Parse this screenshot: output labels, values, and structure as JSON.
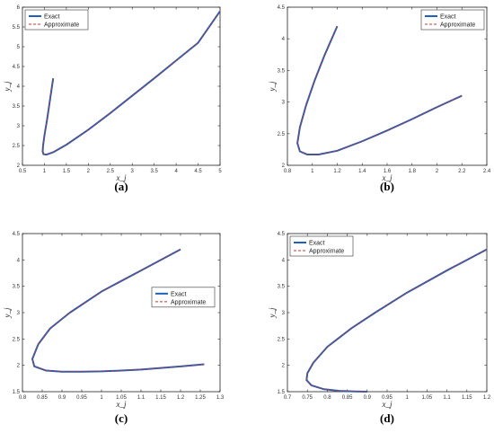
{
  "chart_data": [
    {
      "type": "line",
      "caption": "(a)",
      "xlabel": "x_j",
      "ylabel": "y_j",
      "xlim": [
        0.5,
        5
      ],
      "ylim": [
        2,
        6
      ],
      "xticks": [
        "0.5",
        "1",
        "1.5",
        "2",
        "2.5",
        "3",
        "3.5",
        "4",
        "4.5",
        "5"
      ],
      "yticks": [
        "2",
        "2.5",
        "3",
        "3.5",
        "4",
        "4.5",
        "5",
        "5.5",
        "6"
      ],
      "legend_position": "top-left",
      "series": [
        {
          "name": "Exact",
          "color": "#1f5fbf",
          "style": "solid",
          "x": [
            1.2,
            1.12,
            1.06,
            1.0,
            0.97,
            0.96,
            0.98,
            1.05,
            1.2,
            1.5,
            2.0,
            2.5,
            3.0,
            3.5,
            4.0,
            4.5,
            5.0
          ],
          "y": [
            4.2,
            3.6,
            3.15,
            2.75,
            2.5,
            2.35,
            2.28,
            2.27,
            2.33,
            2.52,
            2.9,
            3.32,
            3.76,
            4.2,
            4.65,
            5.1,
            5.9
          ]
        },
        {
          "name": "Approximate",
          "color": "#c0392b",
          "style": "dashed",
          "x": [
            1.2,
            1.12,
            1.06,
            1.0,
            0.97,
            0.96,
            0.98,
            1.05,
            1.2,
            1.5,
            2.0,
            2.5,
            3.0,
            3.5,
            4.0,
            4.5,
            5.0
          ],
          "y": [
            4.2,
            3.6,
            3.15,
            2.75,
            2.5,
            2.35,
            2.28,
            2.27,
            2.33,
            2.52,
            2.9,
            3.32,
            3.76,
            4.2,
            4.65,
            5.1,
            5.9
          ]
        }
      ]
    },
    {
      "type": "line",
      "caption": "(b)",
      "xlabel": "x_j",
      "ylabel": "y_j",
      "xlim": [
        0.8,
        2.4
      ],
      "ylim": [
        2,
        4.5
      ],
      "xticks": [
        "0.8",
        "1",
        "1.2",
        "1.4",
        "1.6",
        "1.8",
        "2",
        "2.2",
        "2.4"
      ],
      "yticks": [
        "2",
        "2.5",
        "3",
        "3.5",
        "4",
        "4.5"
      ],
      "legend_position": "top-right",
      "series": [
        {
          "name": "Exact",
          "color": "#1f5fbf",
          "style": "solid",
          "x": [
            1.2,
            1.1,
            1.02,
            0.95,
            0.9,
            0.88,
            0.9,
            0.96,
            1.05,
            1.2,
            1.4,
            1.6,
            1.8,
            2.0,
            2.2
          ],
          "y": [
            4.2,
            3.75,
            3.35,
            2.95,
            2.6,
            2.35,
            2.22,
            2.17,
            2.17,
            2.23,
            2.38,
            2.55,
            2.73,
            2.92,
            3.1
          ]
        },
        {
          "name": "Approximate",
          "color": "#c0392b",
          "style": "dashed",
          "x": [
            1.2,
            1.1,
            1.02,
            0.95,
            0.9,
            0.88,
            0.9,
            0.96,
            1.05,
            1.2,
            1.4,
            1.6,
            1.8,
            2.0,
            2.2
          ],
          "y": [
            4.2,
            3.75,
            3.35,
            2.95,
            2.6,
            2.35,
            2.22,
            2.17,
            2.17,
            2.23,
            2.38,
            2.55,
            2.73,
            2.92,
            3.1
          ]
        }
      ]
    },
    {
      "type": "line",
      "caption": "(c)",
      "xlabel": "x_j",
      "ylabel": "y_j",
      "xlim": [
        0.8,
        1.3
      ],
      "ylim": [
        1.5,
        4.5
      ],
      "xticks": [
        "0.8",
        "0.85",
        "0.9",
        "0.95",
        "1",
        "1.05",
        "1.1",
        "1.15",
        "1.2",
        "1.25",
        "1.3"
      ],
      "yticks": [
        "1.5",
        "2",
        "2.5",
        "3",
        "3.5",
        "4",
        "4.5"
      ],
      "legend_position": "center-right",
      "series": [
        {
          "name": "Exact",
          "color": "#1f5fbf",
          "style": "solid",
          "x": [
            1.2,
            1.1,
            1.0,
            0.92,
            0.87,
            0.84,
            0.825,
            0.83,
            0.86,
            0.9,
            0.95,
            1.0,
            1.05,
            1.1,
            1.15,
            1.2,
            1.26
          ],
          "y": [
            4.2,
            3.8,
            3.4,
            3.0,
            2.7,
            2.4,
            2.12,
            1.98,
            1.9,
            1.88,
            1.88,
            1.885,
            1.9,
            1.92,
            1.95,
            1.98,
            2.02
          ]
        },
        {
          "name": "Approximate",
          "color": "#c0392b",
          "style": "dashed",
          "x": [
            1.2,
            1.1,
            1.0,
            0.92,
            0.87,
            0.84,
            0.825,
            0.83,
            0.86,
            0.9,
            0.95,
            1.0,
            1.05,
            1.1,
            1.15,
            1.2,
            1.26
          ],
          "y": [
            4.2,
            3.8,
            3.4,
            3.0,
            2.7,
            2.4,
            2.12,
            1.98,
            1.9,
            1.88,
            1.88,
            1.885,
            1.9,
            1.92,
            1.95,
            1.98,
            2.02
          ]
        }
      ]
    },
    {
      "type": "line",
      "caption": "(d)",
      "xlabel": "x_j",
      "ylabel": "y_j",
      "xlim": [
        0.7,
        1.2
      ],
      "ylim": [
        1.5,
        4.5
      ],
      "xticks": [
        "0.7",
        "0.75",
        "0.8",
        "0.85",
        "0.9",
        "0.95",
        "1",
        "1.05",
        "1.1",
        "1.15",
        "1.2"
      ],
      "yticks": [
        "1.5",
        "2",
        "2.5",
        "3",
        "3.5",
        "4",
        "4.5"
      ],
      "legend_position": "top-left",
      "series": [
        {
          "name": "Exact",
          "color": "#1f5fbf",
          "style": "solid",
          "x": [
            1.2,
            1.1,
            1.0,
            0.92,
            0.86,
            0.8,
            0.765,
            0.75,
            0.748,
            0.76,
            0.79,
            0.83,
            0.87,
            0.9
          ],
          "y": [
            4.2,
            3.8,
            3.38,
            3.0,
            2.7,
            2.35,
            2.05,
            1.85,
            1.72,
            1.62,
            1.55,
            1.515,
            1.505,
            1.5
          ]
        },
        {
          "name": "Approximate",
          "color": "#c0392b",
          "style": "dashed",
          "x": [
            1.2,
            1.1,
            1.0,
            0.92,
            0.86,
            0.8,
            0.765,
            0.75,
            0.748,
            0.76,
            0.79,
            0.83,
            0.87,
            0.9
          ],
          "y": [
            4.2,
            3.8,
            3.38,
            3.0,
            2.7,
            2.35,
            2.05,
            1.85,
            1.72,
            1.62,
            1.55,
            1.515,
            1.505,
            1.5
          ]
        }
      ]
    }
  ]
}
